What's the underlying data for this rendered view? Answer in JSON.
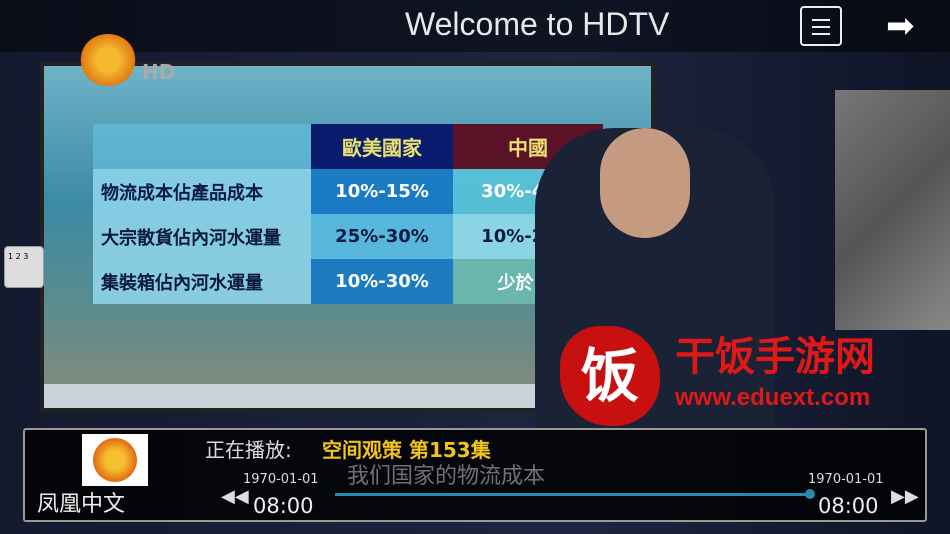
{
  "header": {
    "title": "Welcome to HDTV",
    "menu_icon": "menu-icon",
    "forward_icon": "arrow-right-icon"
  },
  "channel_logo": {
    "hd_label": "HD"
  },
  "table": {
    "headers": [
      "",
      "歐美國家",
      "中國"
    ],
    "rows": [
      [
        "物流成本佔產品成本",
        "10%-15%",
        "30%-40%"
      ],
      [
        "大宗散貨佔內河水運量",
        "25%-30%",
        "10%-20%"
      ],
      [
        "集裝箱佔內河水運量",
        "10%-30%",
        "少於10"
      ]
    ]
  },
  "side_button": {
    "label": "1 2 3"
  },
  "osd": {
    "channel_name": "凤凰中文",
    "now_playing_label": "正在播放:",
    "program": "空间观策 第153集",
    "start_date": "1970-01-01",
    "start_time": "08:00",
    "end_date": "1970-01-01",
    "end_time": "08:00",
    "progress": 0.99,
    "subtitle": "我们国家的物流成本"
  },
  "watermark": {
    "text": "干饭手游网",
    "url": "www.eduext.com"
  }
}
